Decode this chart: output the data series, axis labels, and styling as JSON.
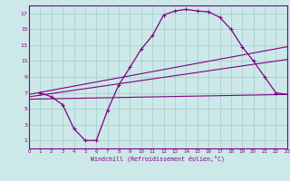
{
  "xlabel": "Windchill (Refroidissement éolien,°C)",
  "bg_color": "#cce8e8",
  "line_color": "#800080",
  "xlim": [
    0,
    23
  ],
  "ylim": [
    0,
    18
  ],
  "xticks": [
    0,
    1,
    2,
    3,
    4,
    5,
    6,
    7,
    8,
    9,
    10,
    11,
    12,
    13,
    14,
    15,
    16,
    17,
    18,
    19,
    20,
    21,
    22,
    23
  ],
  "yticks": [
    1,
    3,
    5,
    7,
    9,
    11,
    13,
    15,
    17
  ],
  "grid_color": "#aacfcf",
  "line1_x": [
    1,
    2,
    3,
    4,
    5,
    6,
    7,
    8,
    9,
    10,
    11,
    12,
    13,
    14,
    15,
    16,
    17,
    18,
    19,
    20,
    21,
    22,
    23
  ],
  "line1_y": [
    7.0,
    6.5,
    5.5,
    2.5,
    1.0,
    1.0,
    4.8,
    8.0,
    10.2,
    12.5,
    14.2,
    16.8,
    17.3,
    17.5,
    17.3,
    17.2,
    16.5,
    15.0,
    12.8,
    11.0,
    9.0,
    7.0,
    6.8
  ],
  "line2_x": [
    0,
    23
  ],
  "line2_y": [
    6.8,
    12.8
  ],
  "line3_x": [
    0,
    23
  ],
  "line3_y": [
    6.5,
    11.2
  ],
  "line4_x": [
    0,
    23
  ],
  "line4_y": [
    6.2,
    6.8
  ]
}
